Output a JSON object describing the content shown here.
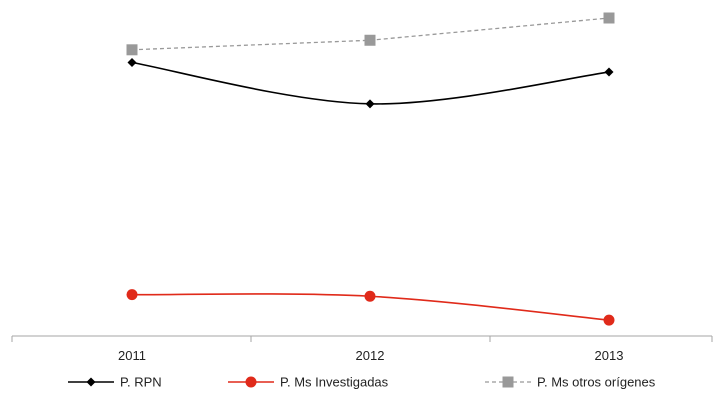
{
  "chart_data": {
    "type": "line",
    "title": "",
    "xlabel": "",
    "ylabel": "",
    "categories": [
      "2011",
      "2012",
      "2013"
    ],
    "ylim": [
      0,
      100
    ],
    "grid": false,
    "legend_position": "bottom",
    "series": [
      {
        "name": "P. RPN",
        "values": [
          86,
          73,
          83
        ],
        "color": "#000000",
        "marker": "diamond",
        "line": "solid",
        "smooth": true
      },
      {
        "name": "P. Ms Investigadas",
        "values": [
          13,
          12.5,
          5
        ],
        "color": "#e02a1a",
        "marker": "circle",
        "line": "solid",
        "smooth": true
      },
      {
        "name": "P. Ms otros orígenes",
        "values": [
          90,
          93,
          100
        ],
        "color": "#999999",
        "marker": "square",
        "line": "dashed",
        "smooth": false
      }
    ]
  }
}
